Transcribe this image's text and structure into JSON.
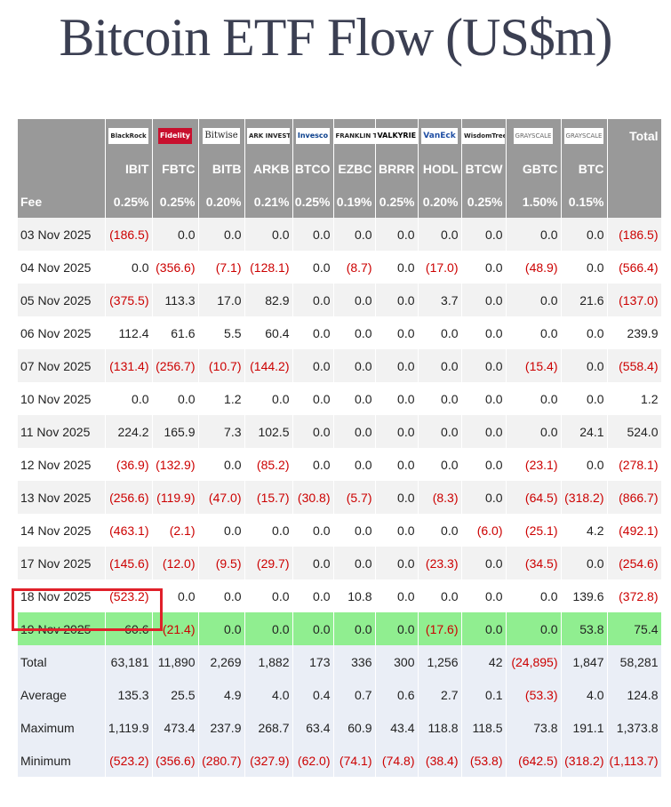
{
  "title": "Bitcoin ETF Flow (US$m)",
  "header": {
    "total_label": "Total",
    "fee_label": "Fee",
    "logos": [
      {
        "name": "blackrock-logo",
        "text": "BlackRock",
        "cls": "",
        "ticker": "IBIT",
        "fee": "0.25%"
      },
      {
        "name": "fidelity-logo",
        "text": "Fidelity",
        "cls": "fid",
        "ticker": "FBTC",
        "fee": "0.25%"
      },
      {
        "name": "bitwise-logo",
        "text": "Bitwise",
        "cls": "bw",
        "ticker": "BITB",
        "fee": "0.20%"
      },
      {
        "name": "ark-invest-logo",
        "text": "ARK INVEST",
        "cls": "",
        "ticker": "ARKB",
        "fee": "0.21%"
      },
      {
        "name": "invesco-logo",
        "text": "Invesco",
        "cls": "inv",
        "ticker": "BTCO",
        "fee": "0.25%"
      },
      {
        "name": "franklin-templeton-logo",
        "text": "FRANKLIN TEMPLETON",
        "cls": "",
        "ticker": "EZBC",
        "fee": "0.19%"
      },
      {
        "name": "valkyrie-logo",
        "text": "VALKYRIE",
        "cls": "vk",
        "ticker": "BRRR",
        "fee": "0.25%"
      },
      {
        "name": "vaneck-logo",
        "text": "VanEck",
        "cls": "ve",
        "ticker": "HODL",
        "fee": "0.20%"
      },
      {
        "name": "wisdomtree-logo",
        "text": "WisdomTree",
        "cls": "",
        "ticker": "BTCW",
        "fee": "0.25%"
      },
      {
        "name": "grayscale-gbtc-logo",
        "text": "GRAYSCALE",
        "cls": "gs",
        "ticker": "GBTC",
        "fee": "1.50%"
      },
      {
        "name": "grayscale-btc-logo",
        "text": "GRAYSCALE",
        "cls": "gs",
        "ticker": "BTC",
        "fee": "0.15%"
      }
    ]
  },
  "rows": [
    {
      "date": "03 Nov 2025",
      "cells": [
        "(186.5)",
        "0.0",
        "0.0",
        "0.0",
        "0.0",
        "0.0",
        "0.0",
        "0.0",
        "0.0",
        "0.0",
        "0.0",
        "(186.5)"
      ]
    },
    {
      "date": "04 Nov 2025",
      "cells": [
        "0.0",
        "(356.6)",
        "(7.1)",
        "(128.1)",
        "0.0",
        "(8.7)",
        "0.0",
        "(17.0)",
        "0.0",
        "(48.9)",
        "0.0",
        "(566.4)"
      ]
    },
    {
      "date": "05 Nov 2025",
      "cells": [
        "(375.5)",
        "113.3",
        "17.0",
        "82.9",
        "0.0",
        "0.0",
        "0.0",
        "3.7",
        "0.0",
        "0.0",
        "21.6",
        "(137.0)"
      ]
    },
    {
      "date": "06 Nov 2025",
      "cells": [
        "112.4",
        "61.6",
        "5.5",
        "60.4",
        "0.0",
        "0.0",
        "0.0",
        "0.0",
        "0.0",
        "0.0",
        "0.0",
        "239.9"
      ]
    },
    {
      "date": "07 Nov 2025",
      "cells": [
        "(131.4)",
        "(256.7)",
        "(10.7)",
        "(144.2)",
        "0.0",
        "0.0",
        "0.0",
        "0.0",
        "0.0",
        "(15.4)",
        "0.0",
        "(558.4)"
      ]
    },
    {
      "date": "10 Nov 2025",
      "cells": [
        "0.0",
        "0.0",
        "1.2",
        "0.0",
        "0.0",
        "0.0",
        "0.0",
        "0.0",
        "0.0",
        "0.0",
        "0.0",
        "1.2"
      ]
    },
    {
      "date": "11 Nov 2025",
      "cells": [
        "224.2",
        "165.9",
        "7.3",
        "102.5",
        "0.0",
        "0.0",
        "0.0",
        "0.0",
        "0.0",
        "0.0",
        "24.1",
        "524.0"
      ]
    },
    {
      "date": "12 Nov 2025",
      "cells": [
        "(36.9)",
        "(132.9)",
        "0.0",
        "(85.2)",
        "0.0",
        "0.0",
        "0.0",
        "0.0",
        "0.0",
        "(23.1)",
        "0.0",
        "(278.1)"
      ]
    },
    {
      "date": "13 Nov 2025",
      "cells": [
        "(256.6)",
        "(119.9)",
        "(47.0)",
        "(15.7)",
        "(30.8)",
        "(5.7)",
        "0.0",
        "(8.3)",
        "0.0",
        "(64.5)",
        "(318.2)",
        "(866.7)"
      ]
    },
    {
      "date": "14 Nov 2025",
      "cells": [
        "(463.1)",
        "(2.1)",
        "0.0",
        "0.0",
        "0.0",
        "0.0",
        "0.0",
        "0.0",
        "(6.0)",
        "(25.1)",
        "4.2",
        "(492.1)"
      ]
    },
    {
      "date": "17 Nov 2025",
      "cells": [
        "(145.6)",
        "(12.0)",
        "(9.5)",
        "(29.7)",
        "0.0",
        "0.0",
        "0.0",
        "(23.3)",
        "0.0",
        "(34.5)",
        "0.0",
        "(254.6)"
      ]
    },
    {
      "date": "18 Nov 2025",
      "cells": [
        "(523.2)",
        "0.0",
        "0.0",
        "0.0",
        "0.0",
        "10.8",
        "0.0",
        "0.0",
        "0.0",
        "0.0",
        "139.6",
        "(372.8)"
      ]
    },
    {
      "date": "19 Nov 2025",
      "highlight": true,
      "cells": [
        "60.6",
        "(21.4)",
        "0.0",
        "0.0",
        "0.0",
        "0.0",
        "0.0",
        "(17.6)",
        "0.0",
        "0.0",
        "53.8",
        "75.4"
      ]
    }
  ],
  "summary": [
    {
      "label": "Total",
      "cells": [
        "63,181",
        "11,890",
        "2,269",
        "1,882",
        "173",
        "336",
        "300",
        "1,256",
        "42",
        "(24,895)",
        "1,847",
        "58,281"
      ]
    },
    {
      "label": "Average",
      "cells": [
        "135.3",
        "25.5",
        "4.9",
        "4.0",
        "0.4",
        "0.7",
        "0.6",
        "2.7",
        "0.1",
        "(53.3)",
        "4.0",
        "124.8"
      ]
    },
    {
      "label": "Maximum",
      "cells": [
        "1,119.9",
        "473.4",
        "237.9",
        "268.7",
        "63.4",
        "60.9",
        "43.4",
        "118.8",
        "118.5",
        "73.8",
        "191.1",
        "1,373.8"
      ]
    },
    {
      "label": "Minimum",
      "cells": [
        "(523.2)",
        "(356.6)",
        "(280.7)",
        "(327.9)",
        "(62.0)",
        "(74.1)",
        "(74.8)",
        "(38.4)",
        "(53.8)",
        "(642.5)",
        "(318.2)",
        "(1,113.7)"
      ]
    }
  ],
  "colors": {
    "negative": "#cc0000",
    "header_bg": "#999999",
    "highlight_row": "#90ee90",
    "summary_bg": "#eaeef6",
    "annotation_box": "#e0202a"
  }
}
